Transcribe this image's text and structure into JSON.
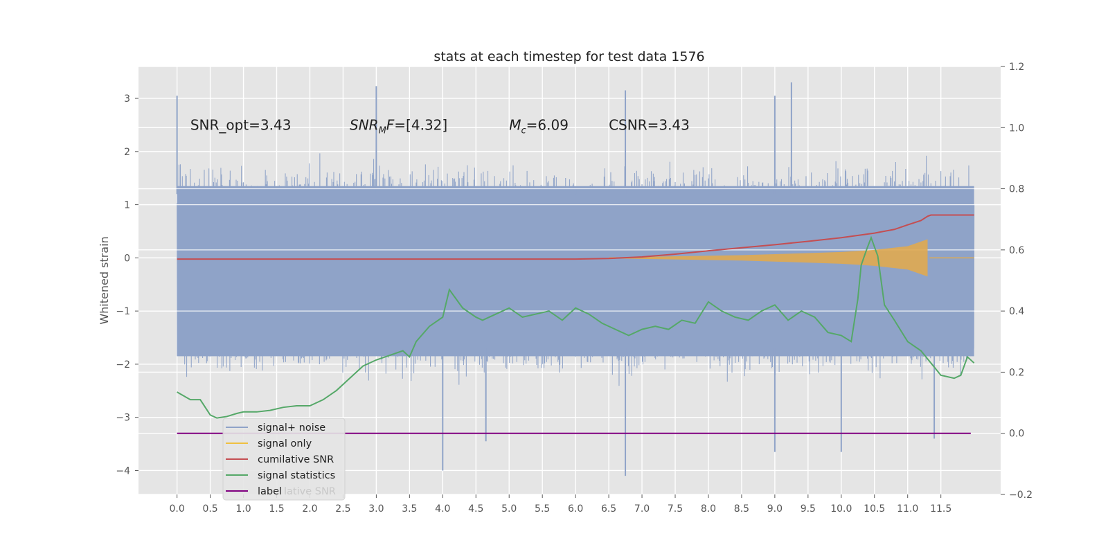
{
  "chart_data": {
    "type": "line",
    "title": "stats at each timestep for test data 1576",
    "ylabel": "Whitened strain",
    "xlabel": "",
    "xlim": [
      -0.58,
      12.4
    ],
    "ylim": [
      -4.45,
      3.6
    ],
    "y2lim": [
      -0.2,
      1.2
    ],
    "grid": true,
    "x_ticks": [
      0.0,
      0.5,
      1.0,
      1.5,
      2.0,
      2.5,
      3.0,
      3.5,
      4.0,
      4.5,
      5.0,
      5.5,
      6.0,
      6.5,
      7.0,
      7.5,
      8.0,
      8.5,
      9.0,
      9.5,
      10.0,
      10.5,
      11.0,
      11.5
    ],
    "x_tick_labels": [
      "0.0",
      "0.5",
      "1.0",
      "1.5",
      "2.0",
      "2.5",
      "3.0",
      "3.5",
      "4.0",
      "4.5",
      "5.0",
      "5.5",
      "6.0",
      "6.5",
      "7.0",
      "7.5",
      "8.0",
      "8.5",
      "9.0",
      "9.5",
      "10.0",
      "10.5",
      "11.0",
      "11.5"
    ],
    "y_ticks": [
      3,
      2,
      1,
      0,
      -1,
      -2,
      -3,
      -4
    ],
    "y_tick_labels": [
      "3",
      "2",
      "1",
      "0",
      "−1",
      "−2",
      "−3",
      "−4"
    ],
    "y2_ticks": [
      1.2,
      1.0,
      0.8,
      0.6,
      0.4,
      0.2,
      0.0,
      -0.2
    ],
    "y2_tick_labels": [
      "1.2",
      "1.0",
      "0.8",
      "0.6",
      "0.4",
      "0.2",
      "0.0",
      "−0.2"
    ],
    "annotations": [
      {
        "x": 0.2,
        "y": 2.5,
        "text": "SNR_opt=3.43"
      },
      {
        "x": 2.6,
        "y": 2.5,
        "text": "SNR_MF=[4.32]"
      },
      {
        "x": 5.0,
        "y": 2.5,
        "text": "M_c=6.09"
      },
      {
        "x": 6.5,
        "y": 2.5,
        "text": "CSNR=3.43"
      }
    ],
    "legend_position": "lower left",
    "legend_ghost_text": "lative SNR",
    "series": [
      {
        "name": "signal+ noise",
        "axis": "left",
        "color": "#8fa3c8",
        "style": "dense noise trace",
        "x_range": [
          0.0,
          12.0
        ],
        "envelope_typical": [
          -1.85,
          1.35
        ],
        "peaks": [
          {
            "x": 0.0,
            "y": 3.05
          },
          {
            "x": 3.0,
            "y": 3.23
          },
          {
            "x": 6.0,
            "y": 1.3
          },
          {
            "x": 6.75,
            "y": 3.15
          },
          {
            "x": 9.0,
            "y": 3.05
          },
          {
            "x": 9.25,
            "y": 3.3
          }
        ],
        "troughs": [
          {
            "x": 4.0,
            "y": -4.0
          },
          {
            "x": 4.65,
            "y": -3.45
          },
          {
            "x": 6.75,
            "y": -4.1
          },
          {
            "x": 9.0,
            "y": -3.65
          },
          {
            "x": 10.0,
            "y": -3.65
          },
          {
            "x": 11.4,
            "y": -3.4
          }
        ]
      },
      {
        "name": "signal only",
        "axis": "left",
        "color": "#e0aa50",
        "style": "chirp",
        "x": [
          6.5,
          7.0,
          7.5,
          8.0,
          8.5,
          9.0,
          9.5,
          10.0,
          10.5,
          11.0,
          11.3
        ],
        "amplitude": [
          0.01,
          0.02,
          0.03,
          0.04,
          0.05,
          0.07,
          0.09,
          0.11,
          0.15,
          0.22,
          0.35
        ],
        "end_x": 11.33
      },
      {
        "name": "cumilative SNR",
        "axis": "right",
        "color": "#c44e52",
        "x": [
          0.0,
          6.0,
          6.5,
          7.0,
          7.5,
          8.0,
          8.5,
          9.0,
          9.5,
          10.0,
          10.5,
          10.8,
          11.0,
          11.2,
          11.3,
          11.35,
          12.0
        ],
        "values": [
          0.57,
          0.57,
          0.572,
          0.577,
          0.586,
          0.597,
          0.607,
          0.617,
          0.628,
          0.64,
          0.655,
          0.667,
          0.682,
          0.696,
          0.71,
          0.714,
          0.714
        ]
      },
      {
        "name": "signal statistics",
        "axis": "right",
        "color": "#55a868",
        "x": [
          0.0,
          0.2,
          0.35,
          0.5,
          0.6,
          0.75,
          0.9,
          1.0,
          1.2,
          1.4,
          1.6,
          1.8,
          2.0,
          2.2,
          2.4,
          2.6,
          2.8,
          3.0,
          3.2,
          3.4,
          3.5,
          3.6,
          3.8,
          4.0,
          4.1,
          4.3,
          4.5,
          4.6,
          4.8,
          5.0,
          5.2,
          5.4,
          5.6,
          5.8,
          6.0,
          6.2,
          6.4,
          6.6,
          6.8,
          7.0,
          7.2,
          7.4,
          7.6,
          7.8,
          8.0,
          8.2,
          8.4,
          8.6,
          8.8,
          9.0,
          9.2,
          9.4,
          9.6,
          9.8,
          10.0,
          10.15,
          10.25,
          10.3,
          10.38,
          10.45,
          10.55,
          10.65,
          10.8,
          11.0,
          11.2,
          11.35,
          11.5,
          11.7,
          11.8,
          11.9,
          12.0
        ],
        "values": [
          0.135,
          0.11,
          0.11,
          0.06,
          0.05,
          0.055,
          0.065,
          0.07,
          0.07,
          0.075,
          0.085,
          0.09,
          0.09,
          0.11,
          0.14,
          0.18,
          0.22,
          0.24,
          0.255,
          0.27,
          0.25,
          0.3,
          0.35,
          0.38,
          0.47,
          0.41,
          0.38,
          0.37,
          0.39,
          0.41,
          0.38,
          0.39,
          0.4,
          0.37,
          0.41,
          0.39,
          0.36,
          0.34,
          0.32,
          0.34,
          0.35,
          0.34,
          0.37,
          0.36,
          0.43,
          0.4,
          0.38,
          0.37,
          0.4,
          0.42,
          0.37,
          0.4,
          0.38,
          0.33,
          0.32,
          0.3,
          0.44,
          0.55,
          0.6,
          0.64,
          0.58,
          0.42,
          0.37,
          0.3,
          0.27,
          0.23,
          0.19,
          0.18,
          0.19,
          0.25,
          0.23
        ]
      },
      {
        "name": "label",
        "axis": "right",
        "color": "#800080",
        "x": [
          0.0,
          11.95
        ],
        "values": [
          0.0,
          0.0
        ]
      }
    ]
  }
}
